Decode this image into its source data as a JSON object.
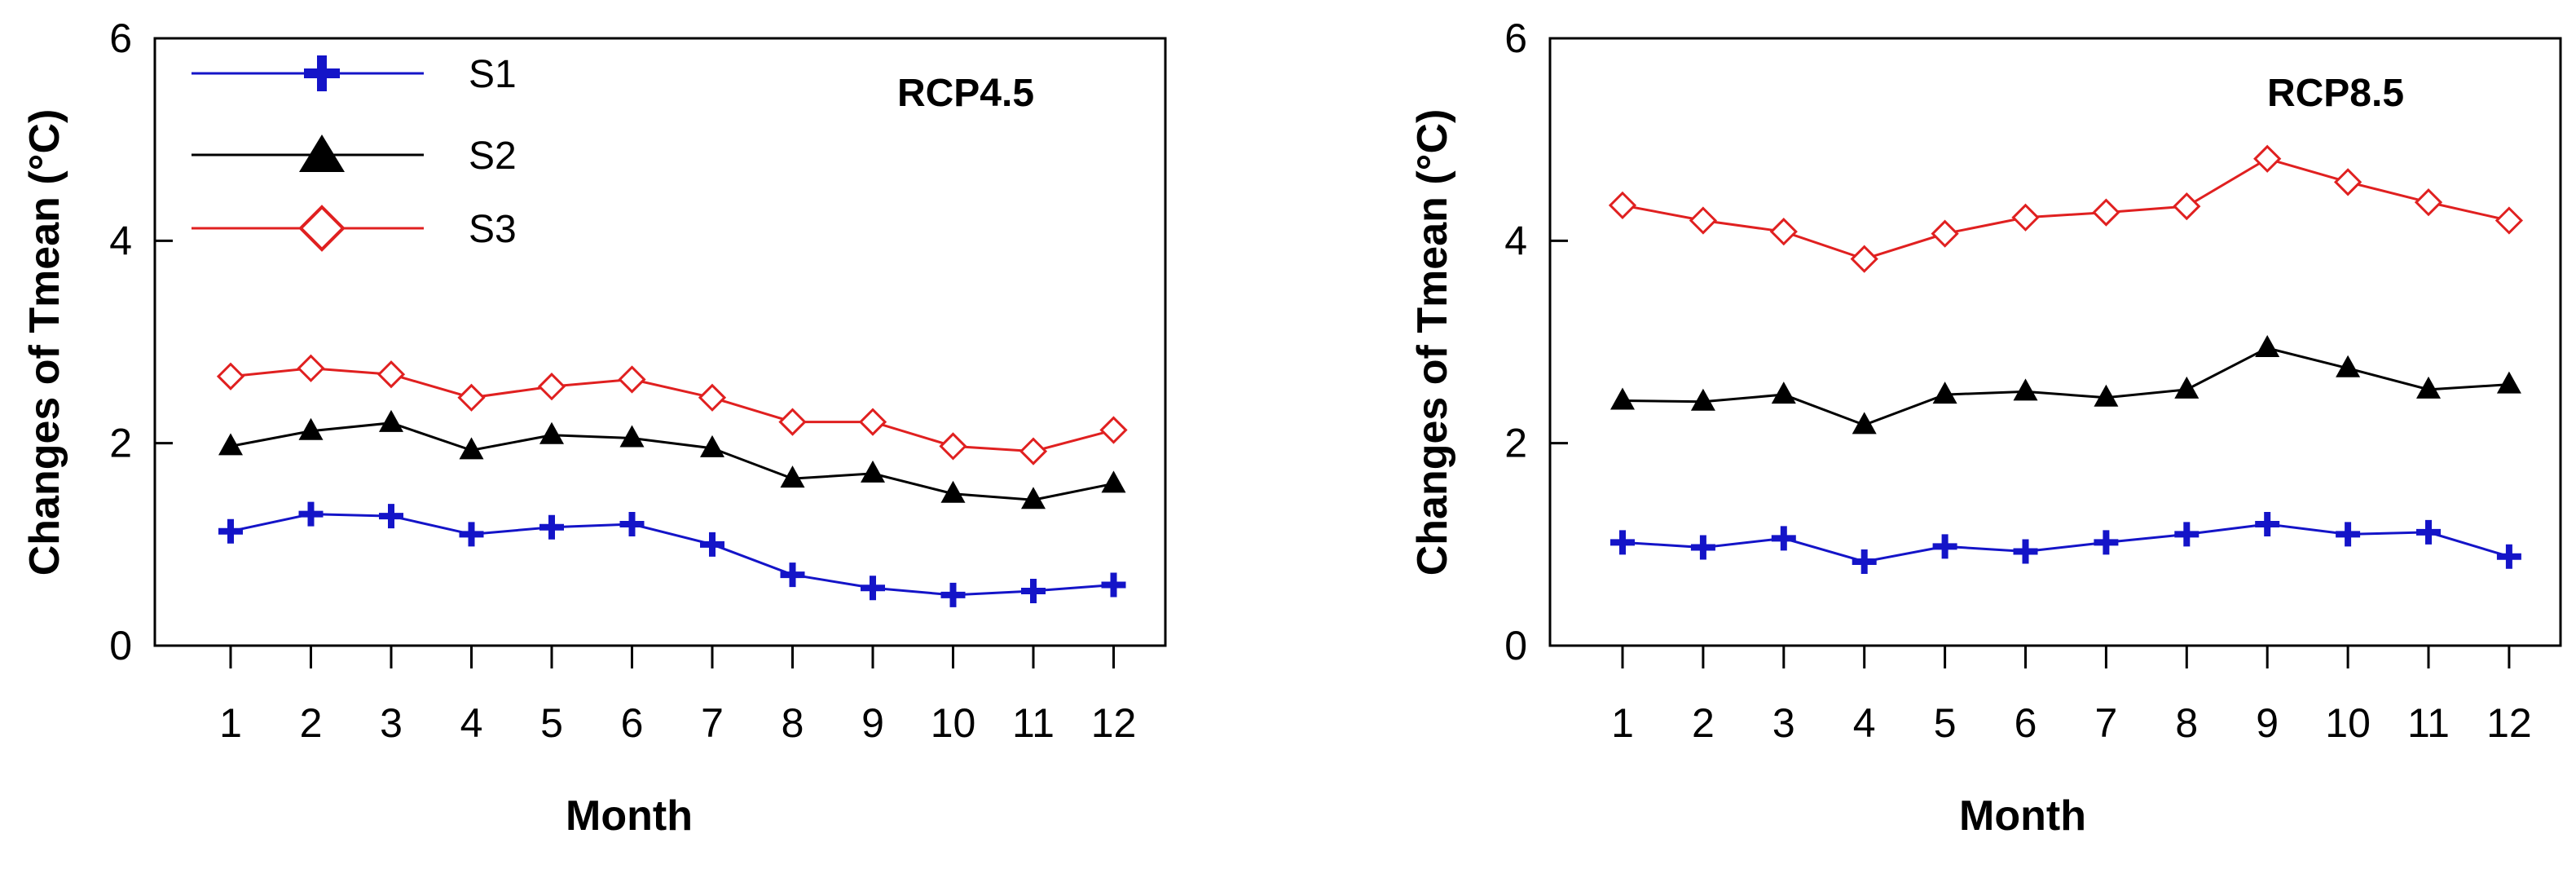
{
  "chart_data": [
    {
      "type": "line",
      "title": "RCP4.5",
      "xlabel": "Month",
      "ylabel": "Changes of Tmean (°C)",
      "categories": [
        "1",
        "2",
        "3",
        "4",
        "5",
        "6",
        "7",
        "8",
        "9",
        "10",
        "11",
        "12"
      ],
      "ylim": [
        0,
        6
      ],
      "yticks": [
        "0",
        "2",
        "4",
        "6"
      ],
      "legend": "top-left",
      "series": [
        {
          "name": "S1",
          "color": "#1414c8",
          "marker": "plus",
          "values": [
            1.13,
            1.3,
            1.28,
            1.1,
            1.17,
            1.2,
            1.0,
            0.7,
            0.57,
            0.5,
            0.54,
            0.6
          ]
        },
        {
          "name": "S2",
          "color": "#000000",
          "marker": "triangle",
          "values": [
            1.97,
            2.12,
            2.2,
            1.93,
            2.08,
            2.05,
            1.95,
            1.65,
            1.7,
            1.5,
            1.44,
            1.6
          ]
        },
        {
          "name": "S3",
          "color": "#e02020",
          "marker": "diamond",
          "values": [
            2.66,
            2.74,
            2.68,
            2.45,
            2.56,
            2.63,
            2.45,
            2.21,
            2.21,
            1.97,
            1.92,
            2.13
          ]
        }
      ]
    },
    {
      "type": "line",
      "title": "RCP8.5",
      "xlabel": "Month",
      "ylabel": "Changes of Tmean (°C)",
      "categories": [
        "1",
        "2",
        "3",
        "4",
        "5",
        "6",
        "7",
        "8",
        "9",
        "10",
        "11",
        "12"
      ],
      "ylim": [
        0,
        6
      ],
      "yticks": [
        "0",
        "2",
        "4",
        "6"
      ],
      "series": [
        {
          "name": "S1",
          "color": "#1414c8",
          "marker": "plus",
          "values": [
            1.02,
            0.97,
            1.06,
            0.83,
            0.98,
            0.93,
            1.02,
            1.1,
            1.2,
            1.1,
            1.12,
            0.88
          ]
        },
        {
          "name": "S2",
          "color": "#000000",
          "marker": "triangle",
          "values": [
            2.42,
            2.41,
            2.48,
            2.18,
            2.48,
            2.51,
            2.45,
            2.53,
            2.94,
            2.74,
            2.53,
            2.58
          ]
        },
        {
          "name": "S3",
          "color": "#e02020",
          "marker": "diamond",
          "values": [
            4.35,
            4.2,
            4.09,
            3.82,
            4.07,
            4.23,
            4.28,
            4.34,
            4.81,
            4.58,
            4.38,
            4.2
          ]
        }
      ]
    }
  ]
}
